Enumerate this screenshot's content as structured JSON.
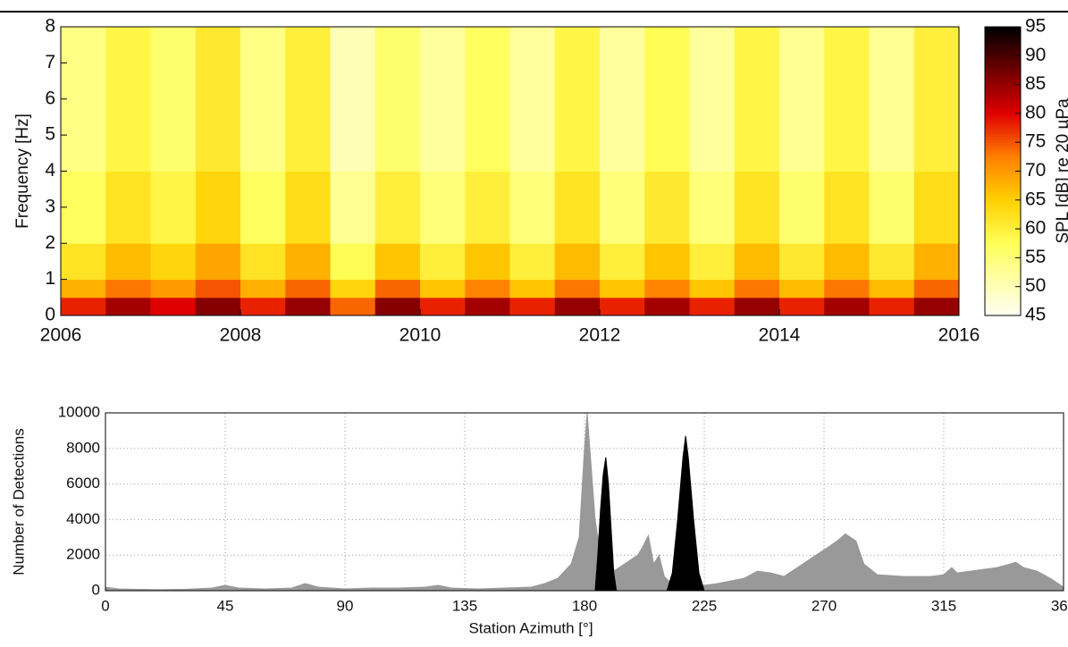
{
  "chart_data": [
    {
      "type": "heatmap",
      "ylabel": "Frequency [Hz]",
      "x_bins": [
        2006,
        2006.5,
        2007,
        2007.5,
        2008,
        2008.5,
        2009,
        2009.5,
        2010,
        2010.5,
        2011,
        2011.5,
        2012,
        2012.5,
        2013,
        2013.5,
        2014,
        2014.5,
        2015,
        2015.5,
        2016
      ],
      "y_bins": [
        0,
        0.5,
        1,
        2,
        4,
        8
      ],
      "z": [
        [
          78,
          84,
          80,
          86,
          78,
          85,
          74,
          86,
          78,
          84,
          78,
          85,
          78,
          84,
          78,
          85,
          78,
          84,
          78,
          85
        ],
        [
          68,
          73,
          70,
          75,
          68,
          74,
          64,
          74,
          66,
          72,
          66,
          73,
          66,
          72,
          66,
          73,
          67,
          73,
          67,
          74
        ],
        [
          62,
          67,
          64,
          69,
          62,
          68,
          58,
          66,
          60,
          66,
          60,
          67,
          60,
          66,
          60,
          67,
          61,
          67,
          61,
          68
        ],
        [
          57,
          62,
          59,
          64,
          57,
          63,
          53,
          60,
          55,
          60,
          55,
          62,
          55,
          61,
          55,
          62,
          56,
          62,
          56,
          63
        ],
        [
          54,
          59,
          56,
          61,
          54,
          60,
          50,
          56,
          52,
          57,
          52,
          59,
          52,
          58,
          52,
          59,
          53,
          59,
          53,
          60
        ]
      ],
      "xlim": [
        2006,
        2016
      ],
      "xticks": [
        2006,
        2008,
        2010,
        2012,
        2014,
        2016
      ],
      "ylim": [
        0,
        8
      ],
      "yticks": [
        0,
        1,
        2,
        3,
        4,
        5,
        6,
        7,
        8
      ],
      "colorbar": {
        "label": "SPL [dB] re 20 µPa",
        "zlim": [
          45,
          95
        ],
        "ticks": [
          45,
          50,
          55,
          60,
          65,
          70,
          75,
          80,
          85,
          90,
          95
        ]
      }
    },
    {
      "type": "area",
      "xlabel": "Station Azimuth [°]",
      "ylabel": "Number of Detections",
      "xlim": [
        0,
        360
      ],
      "xticks": [
        0,
        45,
        90,
        135,
        180,
        225,
        270,
        315,
        360
      ],
      "ylim": [
        0,
        10000
      ],
      "yticks": [
        0,
        2000,
        4000,
        6000,
        8000,
        10000
      ],
      "grid": true,
      "series": [
        {
          "color": "#999999",
          "x": [
            0,
            5,
            10,
            20,
            30,
            40,
            45,
            50,
            60,
            70,
            75,
            80,
            90,
            100,
            110,
            120,
            125,
            130,
            140,
            150,
            160,
            165,
            170,
            175,
            178,
            180,
            181,
            182,
            184,
            186,
            190,
            195,
            200,
            202,
            204,
            206,
            208,
            210,
            212,
            215,
            220,
            225,
            230,
            240,
            245,
            250,
            255,
            260,
            265,
            270,
            275,
            278,
            282,
            285,
            290,
            300,
            310,
            315,
            318,
            320,
            325,
            330,
            335,
            340,
            342,
            345,
            350,
            355,
            360
          ],
          "values": [
            200,
            100,
            80,
            60,
            80,
            150,
            300,
            150,
            100,
            150,
            400,
            200,
            100,
            150,
            150,
            200,
            300,
            150,
            100,
            150,
            200,
            400,
            700,
            1500,
            3000,
            8000,
            10000,
            8000,
            4000,
            2000,
            1000,
            1500,
            2000,
            2500,
            3100,
            1500,
            2000,
            800,
            500,
            400,
            300,
            300,
            400,
            700,
            1100,
            1000,
            800,
            1300,
            1800,
            2300,
            2800,
            3200,
            2800,
            1500,
            900,
            800,
            800,
            900,
            1300,
            1000,
            1100,
            1200,
            1300,
            1500,
            1600,
            1300,
            1100,
            700,
            200
          ]
        },
        {
          "color": "#000000",
          "x": [
            184,
            185,
            186,
            187,
            188,
            189,
            190,
            191,
            192,
            200,
            211,
            213,
            215,
            217,
            218,
            219,
            221,
            223,
            225
          ],
          "values": [
            0,
            2000,
            4500,
            6500,
            7500,
            6000,
            3500,
            1000,
            0,
            null,
            0,
            1000,
            4000,
            7500,
            8700,
            7500,
            4000,
            1000,
            0
          ]
        }
      ]
    }
  ]
}
